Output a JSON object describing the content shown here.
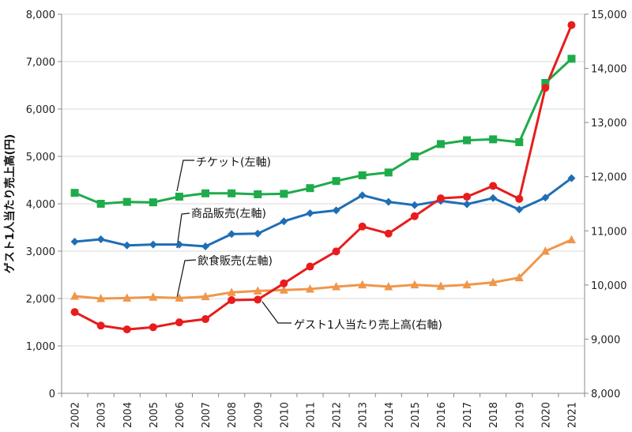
{
  "chart_data": {
    "type": "line",
    "categories": [
      "2002",
      "2003",
      "2004",
      "2005",
      "2006",
      "2007",
      "2008",
      "2009",
      "2010",
      "2011",
      "2012",
      "2013",
      "2014",
      "2015",
      "2016",
      "2017",
      "2018",
      "2019",
      "2020",
      "2021"
    ],
    "ylabel": "ゲスト1人当たり売上高(円)",
    "left_axis": {
      "min": 0,
      "max": 8000,
      "step": 1000,
      "ticks": [
        "0",
        "1,000",
        "2,000",
        "3,000",
        "4,000",
        "5,000",
        "6,000",
        "7,000",
        "8,000"
      ]
    },
    "right_axis": {
      "min": 8000,
      "max": 15000,
      "step": 1000,
      "ticks": [
        "8,000",
        "9,000",
        "10,000",
        "11,000",
        "12,000",
        "13,000",
        "14,000",
        "15,000"
      ]
    },
    "grid": "horizontal",
    "series": [
      {
        "name": "チケット(左軸)",
        "axis": "left",
        "color": "#1eab4b",
        "marker": "square",
        "values": [
          4230,
          4000,
          4040,
          4030,
          4150,
          4220,
          4220,
          4200,
          4210,
          4330,
          4480,
          4600,
          4660,
          5000,
          5260,
          5340,
          5360,
          5300,
          6550,
          7060
        ]
      },
      {
        "name": "商品販売(左軸)",
        "axis": "left",
        "color": "#1f6eb5",
        "marker": "diamond",
        "values": [
          3200,
          3250,
          3120,
          3140,
          3140,
          3100,
          3360,
          3370,
          3630,
          3800,
          3860,
          4180,
          4040,
          3970,
          4060,
          3990,
          4120,
          3880,
          4130,
          4540
        ]
      },
      {
        "name": "飲食販売(左軸)",
        "axis": "left",
        "color": "#f0964a",
        "marker": "triangle",
        "values": [
          2050,
          2000,
          2010,
          2030,
          2010,
          2040,
          2130,
          2160,
          2180,
          2200,
          2250,
          2290,
          2250,
          2290,
          2260,
          2290,
          2340,
          2440,
          3000,
          3240
        ]
      },
      {
        "name": "ゲスト1人当たり売上高(右軸)",
        "axis": "right",
        "color": "#e81c1c",
        "marker": "circle",
        "values": [
          9500,
          9250,
          9180,
          9220,
          9310,
          9370,
          9720,
          9730,
          10030,
          10340,
          10620,
          11080,
          10950,
          11270,
          11600,
          11630,
          11830,
          11590,
          13640,
          14800
        ]
      }
    ]
  }
}
